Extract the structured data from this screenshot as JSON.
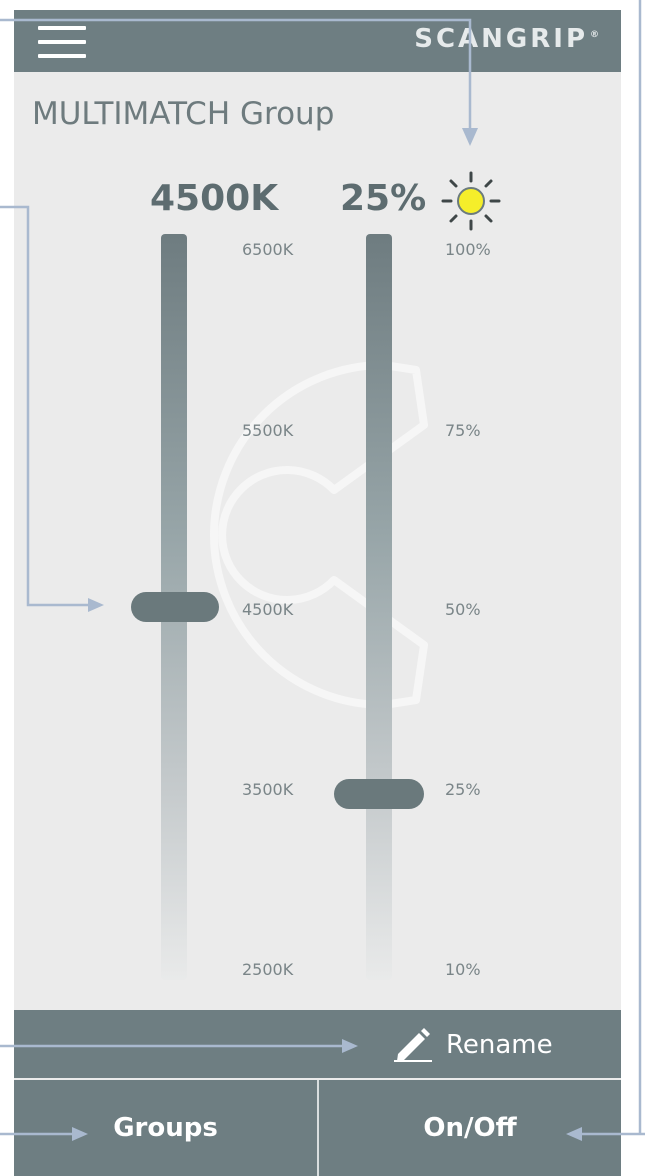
{
  "app": {
    "logo_text": "SCANGRIP",
    "logo_mark": "®",
    "group_title": "MULTIMATCH Group"
  },
  "color_temperature": {
    "value_label": "4500K",
    "ticks": [
      "6500K",
      "5500K",
      "4500K",
      "3500K",
      "2500K"
    ],
    "min": 2500,
    "max": 6500,
    "current": 4500
  },
  "brightness": {
    "value_label": "25%",
    "ticks": [
      "100%",
      "75%",
      "50%",
      "25%",
      "10%"
    ],
    "current_percent": 25
  },
  "icons": {
    "menu": "hamburger-menu-icon",
    "brightness": "sun-icon",
    "rename": "pencil-icon"
  },
  "actions": {
    "rename_label": "Rename",
    "groups_label": "Groups",
    "onoff_label": "On/Off"
  },
  "colors": {
    "bar": "#6e7e82",
    "background": "#ebebeb",
    "sun": "#f5ee2a",
    "callout": "#a9b9cf"
  }
}
